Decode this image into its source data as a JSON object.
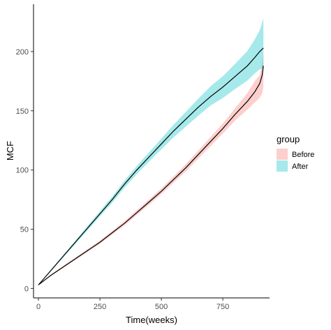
{
  "chart_data": {
    "type": "line",
    "title": "",
    "xlabel": "Time(weeks)",
    "ylabel": "MCF",
    "xlim": [
      -20,
      940
    ],
    "ylim": [
      -8,
      240
    ],
    "xticks": [
      0,
      250,
      500,
      750
    ],
    "yticks": [
      0,
      50,
      100,
      150,
      200
    ],
    "grid": false,
    "legend": {
      "title": "group",
      "position": "right"
    },
    "series": [
      {
        "name": "Before",
        "fill_color": "#F8766D",
        "line_color": "#000000",
        "x": [
          0,
          50,
          100,
          150,
          200,
          250,
          300,
          350,
          400,
          450,
          500,
          550,
          600,
          650,
          700,
          750,
          800,
          850,
          880,
          900,
          910,
          915
        ],
        "y": [
          3,
          11,
          18,
          25,
          32,
          39,
          47,
          55,
          64,
          73,
          82,
          92,
          102,
          113,
          124,
          135,
          147,
          158,
          166,
          173,
          180,
          188
        ],
        "lower": [
          3,
          10.5,
          17.2,
          24,
          30.8,
          37.7,
          45.5,
          53.3,
          62,
          70.8,
          79.6,
          89.3,
          99,
          109.6,
          120.2,
          130.7,
          141.8,
          151,
          157,
          161,
          165,
          170
        ],
        "upper": [
          3,
          11.5,
          18.8,
          26,
          33.2,
          40.3,
          48.5,
          56.7,
          66,
          75.2,
          84.4,
          94.7,
          105,
          116.4,
          127.8,
          139.3,
          152.2,
          165,
          175,
          180,
          190,
          198
        ]
      },
      {
        "name": "After",
        "fill_color": "#00BFC4",
        "line_color": "#000000",
        "x": [
          0,
          50,
          100,
          150,
          200,
          250,
          300,
          350,
          400,
          450,
          500,
          550,
          600,
          650,
          700,
          750,
          800,
          850,
          880,
          900,
          915
        ],
        "y": [
          3,
          15,
          27,
          39,
          51,
          63,
          75,
          88,
          100,
          111,
          122,
          133,
          143,
          153,
          162,
          170,
          179,
          188,
          195,
          200,
          203
        ],
        "lower": [
          3,
          14.4,
          26,
          37.6,
          49.2,
          60.8,
          72.4,
          85,
          96.5,
          107,
          117.5,
          127.7,
          136.8,
          145.8,
          154.4,
          160.8,
          168.4,
          175.5,
          181.6,
          185,
          186
        ],
        "upper": [
          3,
          15.6,
          28,
          40.4,
          52.8,
          65.2,
          77.6,
          91,
          103.5,
          115,
          126.5,
          138.3,
          149.2,
          160.2,
          170.6,
          179.2,
          189.6,
          200.5,
          210.4,
          218,
          228
        ]
      }
    ]
  }
}
